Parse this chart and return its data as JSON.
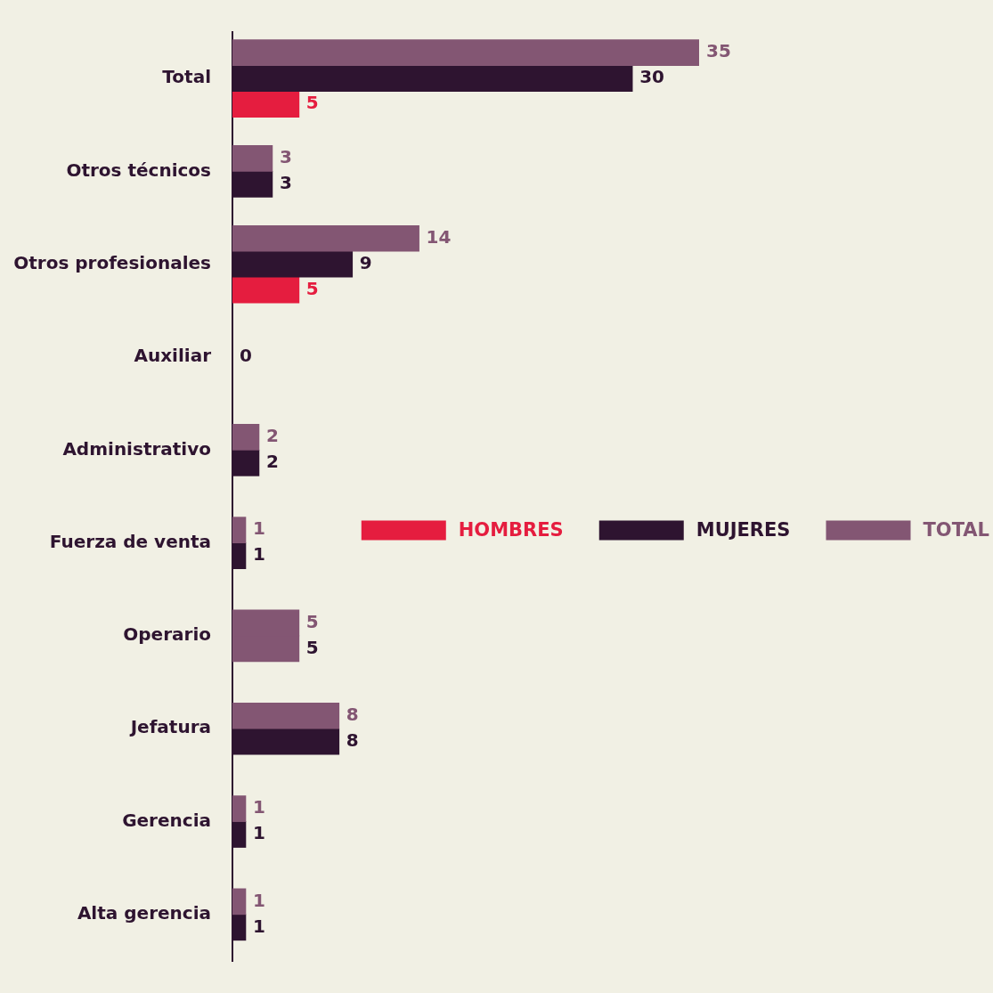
{
  "chart_data": {
    "type": "bar",
    "orientation": "horizontal",
    "categories": [
      "Total",
      "Otros técnicos",
      "Otros profesionales",
      "Auxiliar",
      "Administrativo",
      "Fuerza de venta",
      "Operario",
      "Jefatura",
      "Gerencia",
      "Alta gerencia"
    ],
    "series": [
      {
        "name": "TOTAL",
        "color": "#835673",
        "values": [
          35,
          3,
          14,
          null,
          2,
          1,
          5,
          8,
          1,
          1
        ]
      },
      {
        "name": "MUJERES",
        "color": "#2e1430",
        "colors": [
          "#2e1430",
          "#2e1430",
          "#2e1430",
          "#2e1430",
          "#2e1430",
          "#2e1430",
          "#835673",
          "#2e1430",
          "#2e1430",
          "#2e1430"
        ],
        "values": [
          30,
          3,
          9,
          0,
          2,
          1,
          5,
          8,
          1,
          1
        ]
      },
      {
        "name": "HOMBRES",
        "color": "#e51d3f",
        "values": [
          5,
          null,
          5,
          null,
          null,
          null,
          null,
          null,
          null,
          null
        ]
      }
    ],
    "tick_labels": "y",
    "legend": "right",
    "data_labels": true
  }
}
